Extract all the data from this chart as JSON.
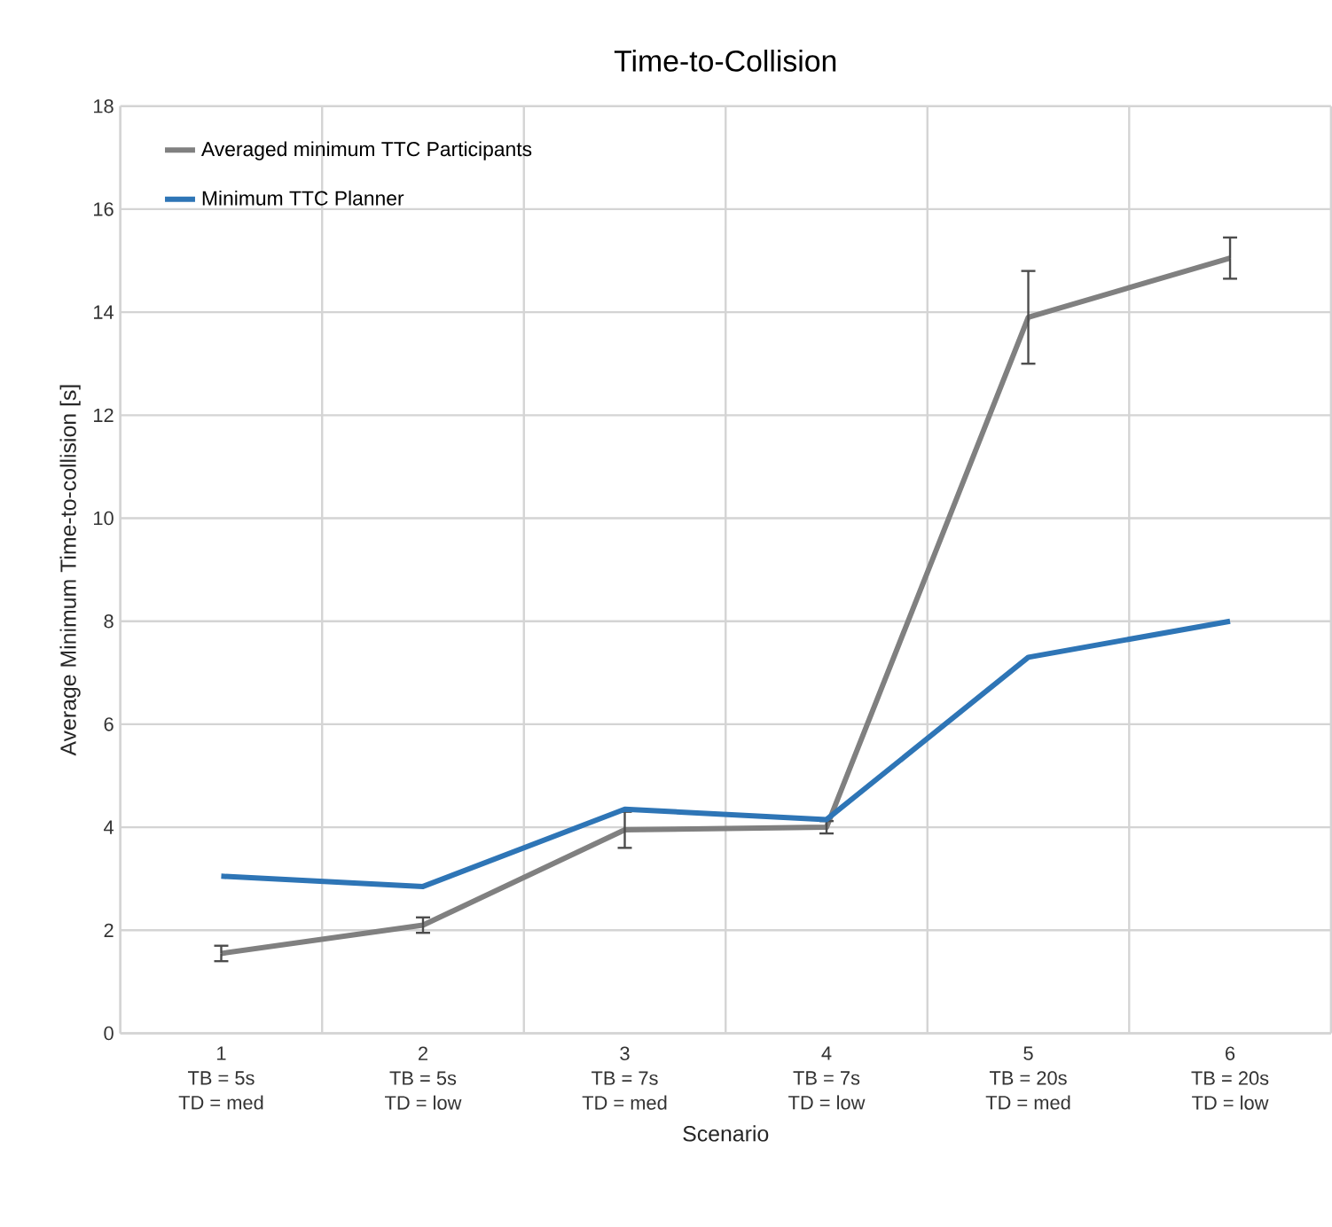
{
  "chart_data": {
    "type": "line",
    "title": "Time-to-Collision",
    "xlabel": "Scenario",
    "ylabel": "Average Minimum Time-to-collision  [s]",
    "categories": [
      "1\nTB = 5s\nTD = med",
      "2\nTB = 5s\nTD = low",
      "3\nTB = 7s\nTD = med",
      "4\nTB = 7s\nTD = low",
      "5\nTB = 20s\nTD = med",
      "6\nTB = 20s\nTD = low"
    ],
    "series": [
      {
        "name": "Averaged minimum TTC Participants",
        "color": "#808080",
        "values": [
          1.55,
          2.1,
          3.95,
          4.0,
          13.9,
          15.05
        ],
        "errors": [
          0.15,
          0.15,
          0.35,
          0.12,
          0.9,
          0.4
        ]
      },
      {
        "name": "Minimum TTC Planner",
        "color": "#2e75b6",
        "values": [
          3.05,
          2.85,
          4.35,
          4.15,
          7.3,
          8.0
        ]
      }
    ],
    "ylim": [
      0,
      18
    ],
    "yticks": [
      0,
      2,
      4,
      6,
      8,
      10,
      12,
      14,
      16,
      18
    ],
    "grid": true,
    "legend": "top left",
    "marker": "none",
    "line_style": "solid"
  }
}
